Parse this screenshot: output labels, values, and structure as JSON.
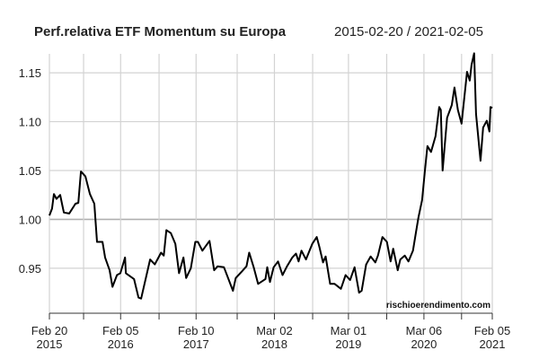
{
  "chart_data": {
    "type": "line",
    "title": "Perf.relativa ETF Momentum su Europa",
    "subtitle": "2015-02-20 / 2021-02-05",
    "watermark": "rischioerendimento.com",
    "xlim": [
      "2015-02-20",
      "2021-02-05"
    ],
    "ylim": [
      0.904,
      1.174
    ],
    "grid": true,
    "reference_line": 1.0,
    "line_color": "#000000",
    "grid_color": "#d3d3d3",
    "reference_color": "#b0b0b0",
    "y_ticks": [
      {
        "value": 0.95,
        "label": "0.95"
      },
      {
        "value": 1.0,
        "label": "1.00"
      },
      {
        "value": 1.05,
        "label": "1.05"
      },
      {
        "value": 1.1,
        "label": "1.10"
      },
      {
        "value": 1.15,
        "label": "1.15"
      }
    ],
    "x_ticks": [
      {
        "date": "2015-02-20",
        "line1": "Feb 20",
        "line2": "2015"
      },
      {
        "date": "2015-08-07"
      },
      {
        "date": "2016-02-05",
        "line1": "Feb 05",
        "line2": "2016"
      },
      {
        "date": "2016-08-12"
      },
      {
        "date": "2017-02-10",
        "line1": "Feb 10",
        "line2": "2017"
      },
      {
        "date": "2017-08-31"
      },
      {
        "date": "2018-03-02",
        "line1": "Mar 02",
        "line2": "2018"
      },
      {
        "date": "2018-09-06"
      },
      {
        "date": "2019-03-01",
        "line1": "Mar 01",
        "line2": "2019"
      },
      {
        "date": "2019-09-05"
      },
      {
        "date": "2020-03-06",
        "line1": "Mar 06",
        "line2": "2020"
      },
      {
        "date": "2020-09-07"
      },
      {
        "date": "2021-02-05",
        "line1": "Feb 05",
        "line2": "2021"
      }
    ],
    "series": [
      {
        "points": [
          [
            "2015-02-20",
            1.004
          ],
          [
            "2015-03-05",
            1.011
          ],
          [
            "2015-03-14",
            1.026
          ],
          [
            "2015-03-27",
            1.021
          ],
          [
            "2015-04-14",
            1.025
          ],
          [
            "2015-04-23",
            1.016
          ],
          [
            "2015-05-02",
            1.007
          ],
          [
            "2015-05-28",
            1.006
          ],
          [
            "2015-06-28",
            1.016
          ],
          [
            "2015-07-12",
            1.017
          ],
          [
            "2015-07-25",
            1.049
          ],
          [
            "2015-08-16",
            1.044
          ],
          [
            "2015-09-07",
            1.026
          ],
          [
            "2015-09-29",
            1.016
          ],
          [
            "2015-10-12",
            0.977
          ],
          [
            "2015-11-08",
            0.977
          ],
          [
            "2015-11-21",
            0.961
          ],
          [
            "2015-12-13",
            0.948
          ],
          [
            "2015-12-27",
            0.931
          ],
          [
            "2016-01-18",
            0.943
          ],
          [
            "2016-02-04",
            0.945
          ],
          [
            "2016-02-27",
            0.961
          ],
          [
            "2016-03-02",
            0.945
          ],
          [
            "2016-04-11",
            0.939
          ],
          [
            "2016-05-03",
            0.92
          ],
          [
            "2016-05-16",
            0.919
          ],
          [
            "2016-06-29",
            0.959
          ],
          [
            "2016-07-22",
            0.954
          ],
          [
            "2016-08-22",
            0.966
          ],
          [
            "2016-09-04",
            0.963
          ],
          [
            "2016-09-17",
            0.989
          ],
          [
            "2016-10-09",
            0.986
          ],
          [
            "2016-10-31",
            0.975
          ],
          [
            "2016-11-18",
            0.945
          ],
          [
            "2016-12-10",
            0.961
          ],
          [
            "2016-12-23",
            0.94
          ],
          [
            "2017-01-15",
            0.95
          ],
          [
            "2017-02-06",
            0.977
          ],
          [
            "2017-02-19",
            0.977
          ],
          [
            "2017-03-13",
            0.968
          ],
          [
            "2017-04-17",
            0.978
          ],
          [
            "2017-05-10",
            0.948
          ],
          [
            "2017-05-27",
            0.952
          ],
          [
            "2017-06-27",
            0.951
          ],
          [
            "2017-08-10",
            0.927
          ],
          [
            "2017-08-24",
            0.94
          ],
          [
            "2017-09-24",
            0.947
          ],
          [
            "2017-10-16",
            0.952
          ],
          [
            "2017-10-29",
            0.966
          ],
          [
            "2017-11-20",
            0.951
          ],
          [
            "2017-12-12",
            0.934
          ],
          [
            "2018-01-17",
            0.939
          ],
          [
            "2018-01-26",
            0.951
          ],
          [
            "2018-02-08",
            0.936
          ],
          [
            "2018-02-26",
            0.951
          ],
          [
            "2018-03-20",
            0.957
          ],
          [
            "2018-04-11",
            0.943
          ],
          [
            "2018-05-03",
            0.952
          ],
          [
            "2018-05-29",
            0.961
          ],
          [
            "2018-06-16",
            0.965
          ],
          [
            "2018-06-29",
            0.957
          ],
          [
            "2018-07-13",
            0.968
          ],
          [
            "2018-08-04",
            0.959
          ],
          [
            "2018-09-04",
            0.975
          ],
          [
            "2018-09-26",
            0.982
          ],
          [
            "2018-10-09",
            0.972
          ],
          [
            "2018-10-27",
            0.956
          ],
          [
            "2018-11-09",
            0.962
          ],
          [
            "2018-12-01",
            0.934
          ],
          [
            "2018-12-23",
            0.934
          ],
          [
            "2019-01-23",
            0.929
          ],
          [
            "2019-02-15",
            0.943
          ],
          [
            "2019-03-09",
            0.938
          ],
          [
            "2019-03-31",
            0.951
          ],
          [
            "2019-04-22",
            0.925
          ],
          [
            "2019-05-05",
            0.927
          ],
          [
            "2019-05-27",
            0.954
          ],
          [
            "2019-06-18",
            0.962
          ],
          [
            "2019-07-11",
            0.956
          ],
          [
            "2019-07-24",
            0.963
          ],
          [
            "2019-08-15",
            0.982
          ],
          [
            "2019-09-06",
            0.977
          ],
          [
            "2019-09-24",
            0.957
          ],
          [
            "2019-10-07",
            0.97
          ],
          [
            "2019-10-29",
            0.948
          ],
          [
            "2019-11-11",
            0.959
          ],
          [
            "2019-12-03",
            0.963
          ],
          [
            "2019-12-21",
            0.957
          ],
          [
            "2020-01-12",
            0.968
          ],
          [
            "2020-01-26",
            0.986
          ],
          [
            "2020-02-08",
            1.002
          ],
          [
            "2020-02-26",
            1.02
          ],
          [
            "2020-03-10",
            1.048
          ],
          [
            "2020-03-23",
            1.075
          ],
          [
            "2020-04-10",
            1.069
          ],
          [
            "2020-05-02",
            1.085
          ],
          [
            "2020-05-20",
            1.115
          ],
          [
            "2020-05-28",
            1.112
          ],
          [
            "2020-06-06",
            1.05
          ],
          [
            "2020-06-28",
            1.104
          ],
          [
            "2020-07-21",
            1.117
          ],
          [
            "2020-08-03",
            1.135
          ],
          [
            "2020-08-20",
            1.112
          ],
          [
            "2020-09-07",
            1.098
          ],
          [
            "2020-10-04",
            1.151
          ],
          [
            "2020-10-17",
            1.142
          ],
          [
            "2020-10-26",
            1.158
          ],
          [
            "2020-11-08",
            1.17
          ],
          [
            "2020-11-17",
            1.108
          ],
          [
            "2020-12-09",
            1.06
          ],
          [
            "2020-12-22",
            1.094
          ],
          [
            "2021-01-09",
            1.101
          ],
          [
            "2021-01-22",
            1.09
          ],
          [
            "2021-01-27",
            1.115
          ],
          [
            "2021-02-05",
            1.114
          ]
        ]
      }
    ]
  }
}
